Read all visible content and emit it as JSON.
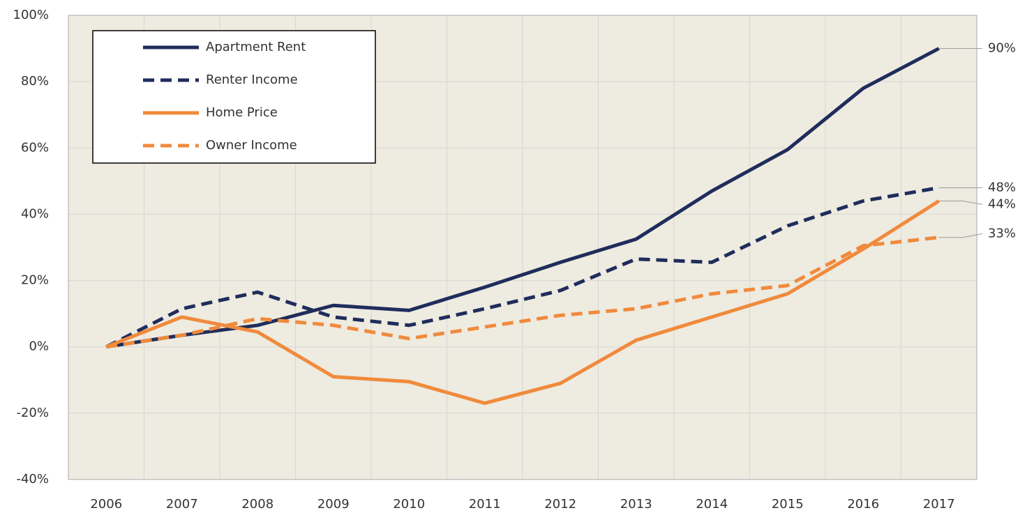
{
  "chart_data": {
    "type": "line",
    "categories": [
      "2006",
      "2007",
      "2008",
      "2009",
      "2010",
      "2011",
      "2012",
      "2013",
      "2014",
      "2015",
      "2016",
      "2017"
    ],
    "series": [
      {
        "name": "Apartment Rent",
        "color": "#1f2d5c",
        "style": "solid",
        "values": [
          0,
          3.5,
          6.5,
          12.5,
          11,
          18,
          25.5,
          32.5,
          47,
          59.5,
          78,
          90
        ],
        "value_labels": [
          null,
          null,
          null,
          null,
          null,
          null,
          null,
          null,
          null,
          null,
          null,
          "90%"
        ]
      },
      {
        "name": "Renter Income",
        "color": "#1f2d5c",
        "style": "dashed",
        "values": [
          0,
          11.5,
          16.5,
          9,
          6.5,
          11.5,
          17,
          26.5,
          25.5,
          36.5,
          44,
          48
        ],
        "value_labels": [
          null,
          null,
          null,
          null,
          null,
          null,
          null,
          null,
          null,
          null,
          null,
          "48%"
        ]
      },
      {
        "name": "Home Price",
        "color": "#f08a3c",
        "style": "solid",
        "values": [
          0,
          9,
          4.5,
          -9,
          -10.5,
          -17,
          -11,
          2,
          9,
          16,
          29.5,
          44
        ],
        "value_labels": [
          null,
          null,
          null,
          null,
          null,
          null,
          null,
          null,
          null,
          null,
          null,
          "44%"
        ]
      },
      {
        "name": "Owner Income",
        "color": "#f08a3c",
        "style": "dashed",
        "values": [
          0,
          3.5,
          8.5,
          6.5,
          2.5,
          6,
          9.5,
          11.5,
          16,
          18.5,
          30.5,
          33
        ],
        "value_labels": [
          null,
          null,
          null,
          null,
          null,
          null,
          null,
          null,
          null,
          null,
          null,
          "33%"
        ]
      }
    ],
    "ylim": [
      -40,
      100
    ],
    "yticks": [
      {
        "value": -40,
        "label": "-40%"
      },
      {
        "value": -20,
        "label": "-20%"
      },
      {
        "value": 0,
        "label": "0%"
      },
      {
        "value": 20,
        "label": "20%"
      },
      {
        "value": 40,
        "label": "40%"
      },
      {
        "value": 60,
        "label": "60%"
      },
      {
        "value": 80,
        "label": "80%"
      },
      {
        "value": 100,
        "label": "100%"
      }
    ],
    "grid": true,
    "legend": "upper left"
  }
}
